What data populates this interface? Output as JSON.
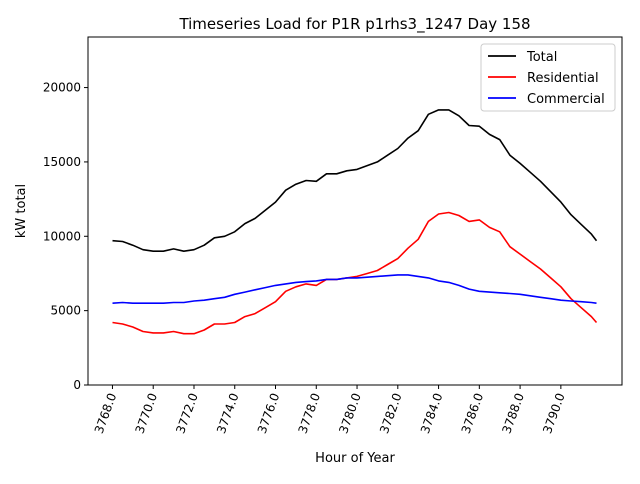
{
  "chart_data": {
    "type": "line",
    "title": "Timeseries Load for P1R p1rhs3_1247  Day 158",
    "xlabel": "Hour of Year",
    "ylabel": "kW total",
    "xlim": [
      3766.8,
      3793.0
    ],
    "ylim": [
      0,
      23400
    ],
    "xticks": [
      "3768.0",
      "3770.0",
      "3772.0",
      "3774.0",
      "3776.0",
      "3778.0",
      "3780.0",
      "3782.0",
      "3784.0",
      "3786.0",
      "3788.0",
      "3790.0"
    ],
    "xtick_values": [
      3768,
      3770,
      3772,
      3774,
      3776,
      3778,
      3780,
      3782,
      3784,
      3786,
      3788,
      3790
    ],
    "yticks": [
      "0",
      "5000",
      "10000",
      "15000",
      "20000"
    ],
    "ytick_values": [
      0,
      5000,
      10000,
      15000,
      20000
    ],
    "grid": false,
    "legend_position": "top-right",
    "x": [
      3768,
      3768.5,
      3769,
      3769.5,
      3770,
      3770.5,
      3771,
      3771.5,
      3772,
      3772.5,
      3773,
      3773.5,
      3774,
      3774.5,
      3775,
      3775.5,
      3776,
      3776.5,
      3777,
      3777.5,
      3778,
      3778.5,
      3779,
      3779.5,
      3780,
      3780.5,
      3781,
      3781.5,
      3782,
      3782.5,
      3783,
      3783.5,
      3784,
      3784.5,
      3785,
      3785.5,
      3786,
      3786.5,
      3787,
      3787.5,
      3788,
      3788.5,
      3789,
      3789.5,
      3790,
      3790.5,
      3791,
      3791.5,
      3791.75
    ],
    "series": [
      {
        "name": "Total",
        "color": "#000000",
        "values": [
          9700,
          9650,
          9400,
          9100,
          9000,
          9000,
          9150,
          9000,
          9100,
          9400,
          9900,
          10000,
          10300,
          10850,
          11200,
          11750,
          12300,
          13100,
          13500,
          13750,
          13700,
          14200,
          14200,
          14400,
          14500,
          14750,
          15000,
          15450,
          15900,
          16600,
          17100,
          18200,
          18500,
          18500,
          18100,
          17450,
          17400,
          16850,
          16500,
          15450,
          14900,
          14300,
          13700,
          13000,
          12300,
          11450,
          10800,
          10150,
          9700
        ]
      },
      {
        "name": "Residential",
        "color": "#ff0000",
        "values": [
          4200,
          4100,
          3900,
          3600,
          3500,
          3500,
          3600,
          3450,
          3450,
          3700,
          4100,
          4100,
          4200,
          4600,
          4800,
          5200,
          5600,
          6300,
          6600,
          6800,
          6700,
          7100,
          7100,
          7200,
          7300,
          7500,
          7700,
          8100,
          8500,
          9200,
          9800,
          11000,
          11500,
          11600,
          11400,
          11000,
          11100,
          10600,
          10300,
          9300,
          8800,
          8300,
          7800,
          7200,
          6600,
          5800,
          5200,
          4600,
          4200
        ]
      },
      {
        "name": "Commercial",
        "color": "#0000ff",
        "values": [
          5500,
          5550,
          5500,
          5500,
          5500,
          5500,
          5550,
          5550,
          5650,
          5700,
          5800,
          5900,
          6100,
          6250,
          6400,
          6550,
          6700,
          6800,
          6900,
          6950,
          7000,
          7100,
          7100,
          7200,
          7200,
          7250,
          7300,
          7350,
          7400,
          7400,
          7300,
          7200,
          7000,
          6900,
          6700,
          6450,
          6300,
          6250,
          6200,
          6150,
          6100,
          6000,
          5900,
          5800,
          5700,
          5650,
          5600,
          5550,
          5500
        ]
      }
    ]
  }
}
